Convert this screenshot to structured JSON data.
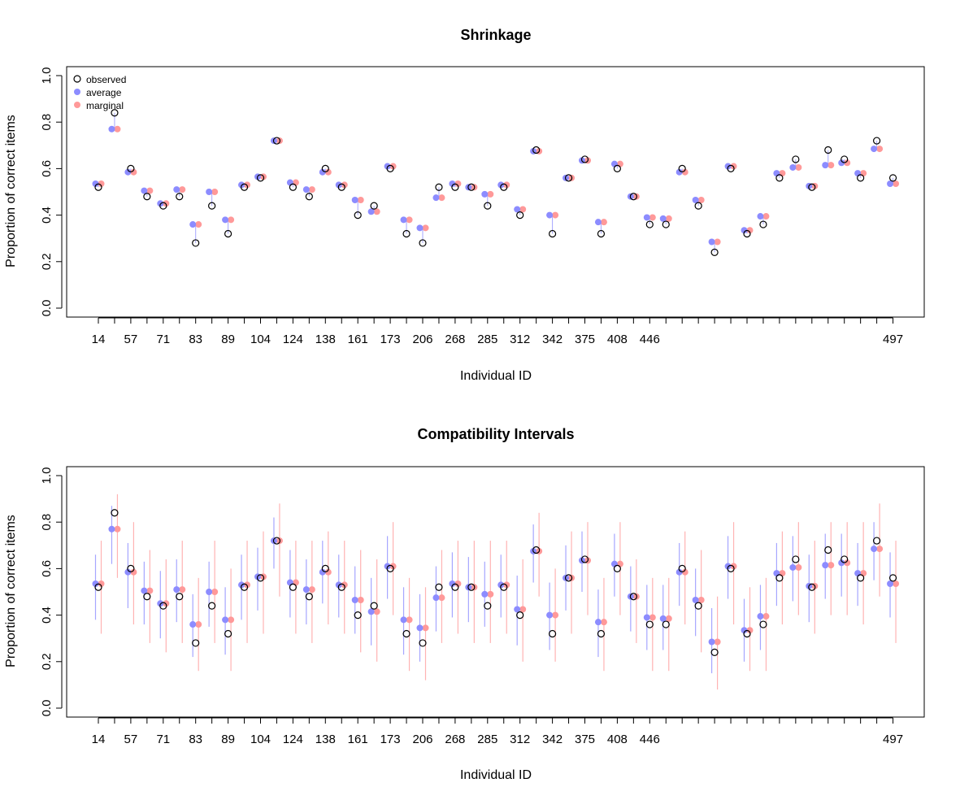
{
  "colors": {
    "observed": "#000000",
    "average": "#8c8cff",
    "marginal": "#ff9999",
    "average_line": "#a6a6ff",
    "marginal_line": "#ffb3b3"
  },
  "chart_data": [
    {
      "type": "scatter",
      "title": "Shrinkage",
      "xlabel": "Individual ID",
      "ylabel": "Proportion of correct items",
      "ylim": [
        0,
        1
      ],
      "yticks": [
        "0.0",
        "0.2",
        "0.4",
        "0.6",
        "0.8",
        "1.0"
      ],
      "xtick_labels": [
        "14",
        "57",
        "71",
        "83",
        "89",
        "104",
        "124",
        "138",
        "161",
        "173",
        "206",
        "268",
        "285",
        "312",
        "342",
        "375",
        "408",
        "446",
        "497"
      ],
      "legend": {
        "position": "top-left",
        "entries": [
          "observed",
          "average",
          "marginal"
        ]
      },
      "observed": [
        0.52,
        0.84,
        0.6,
        0.48,
        0.44,
        0.48,
        0.28,
        0.44,
        0.32,
        0.52,
        0.56,
        0.72,
        0.52,
        0.48,
        0.6,
        0.52,
        0.4,
        0.44,
        0.6,
        0.32,
        0.28,
        0.52,
        0.52,
        0.52,
        0.44,
        0.52,
        0.4,
        0.68,
        0.32,
        0.56,
        0.64,
        0.32,
        0.6,
        0.48,
        0.36,
        0.36,
        0.6,
        0.44,
        0.24,
        0.6,
        0.32,
        0.36,
        0.56,
        0.64,
        0.52,
        0.68,
        0.64,
        0.56,
        0.72,
        0.56
      ],
      "average": [
        0.535,
        0.77,
        0.585,
        0.505,
        0.45,
        0.51,
        0.36,
        0.5,
        0.38,
        0.53,
        0.565,
        0.72,
        0.54,
        0.51,
        0.585,
        0.53,
        0.465,
        0.415,
        0.61,
        0.38,
        0.345,
        0.475,
        0.535,
        0.52,
        0.49,
        0.53,
        0.425,
        0.675,
        0.4,
        0.56,
        0.635,
        0.37,
        0.62,
        0.48,
        0.39,
        0.385,
        0.585,
        0.465,
        0.285,
        0.61,
        0.335,
        0.395,
        0.58,
        0.605,
        0.525,
        0.615,
        0.625,
        0.58,
        0.685,
        0.535
      ],
      "marginal": [
        0.535,
        0.77,
        0.585,
        0.505,
        0.45,
        0.51,
        0.36,
        0.5,
        0.38,
        0.53,
        0.565,
        0.72,
        0.54,
        0.51,
        0.585,
        0.53,
        0.465,
        0.415,
        0.61,
        0.38,
        0.345,
        0.475,
        0.535,
        0.52,
        0.49,
        0.53,
        0.425,
        0.675,
        0.4,
        0.56,
        0.635,
        0.37,
        0.62,
        0.48,
        0.39,
        0.385,
        0.585,
        0.465,
        0.285,
        0.61,
        0.335,
        0.395,
        0.58,
        0.605,
        0.525,
        0.615,
        0.625,
        0.58,
        0.685,
        0.535
      ]
    },
    {
      "type": "scatter",
      "title": "Compatibility Intervals",
      "xlabel": "Individual ID",
      "ylabel": "Proportion of correct items",
      "ylim": [
        0,
        1
      ],
      "yticks": [
        "0.0",
        "0.2",
        "0.4",
        "0.6",
        "0.8",
        "1.0"
      ],
      "xtick_labels": [
        "14",
        "57",
        "71",
        "83",
        "89",
        "104",
        "124",
        "138",
        "161",
        "173",
        "206",
        "268",
        "285",
        "312",
        "342",
        "375",
        "408",
        "446",
        "497"
      ],
      "observed": [
        0.52,
        0.84,
        0.6,
        0.48,
        0.44,
        0.48,
        0.28,
        0.44,
        0.32,
        0.52,
        0.56,
        0.72,
        0.52,
        0.48,
        0.6,
        0.52,
        0.4,
        0.44,
        0.6,
        0.32,
        0.28,
        0.52,
        0.52,
        0.52,
        0.44,
        0.52,
        0.4,
        0.68,
        0.32,
        0.56,
        0.64,
        0.32,
        0.6,
        0.48,
        0.36,
        0.36,
        0.6,
        0.44,
        0.24,
        0.6,
        0.32,
        0.36,
        0.56,
        0.64,
        0.52,
        0.68,
        0.64,
        0.56,
        0.72,
        0.56
      ],
      "average": [
        0.535,
        0.77,
        0.585,
        0.505,
        0.45,
        0.51,
        0.36,
        0.5,
        0.38,
        0.53,
        0.565,
        0.72,
        0.54,
        0.51,
        0.585,
        0.53,
        0.465,
        0.415,
        0.61,
        0.38,
        0.345,
        0.475,
        0.535,
        0.52,
        0.49,
        0.53,
        0.425,
        0.675,
        0.4,
        0.56,
        0.635,
        0.37,
        0.62,
        0.48,
        0.39,
        0.385,
        0.585,
        0.465,
        0.285,
        0.61,
        0.335,
        0.395,
        0.58,
        0.605,
        0.525,
        0.615,
        0.625,
        0.58,
        0.685,
        0.535
      ],
      "marginal": [
        0.535,
        0.77,
        0.585,
        0.505,
        0.45,
        0.51,
        0.36,
        0.5,
        0.38,
        0.53,
        0.565,
        0.72,
        0.54,
        0.51,
        0.585,
        0.53,
        0.465,
        0.415,
        0.61,
        0.38,
        0.345,
        0.475,
        0.535,
        0.52,
        0.49,
        0.53,
        0.425,
        0.675,
        0.4,
        0.56,
        0.635,
        0.37,
        0.62,
        0.48,
        0.39,
        0.385,
        0.585,
        0.465,
        0.285,
        0.61,
        0.335,
        0.395,
        0.58,
        0.605,
        0.525,
        0.615,
        0.625,
        0.58,
        0.685,
        0.535
      ],
      "average_interval": [
        [
          0.38,
          0.66
        ],
        [
          0.62,
          0.87
        ],
        [
          0.43,
          0.71
        ],
        [
          0.36,
          0.63
        ],
        [
          0.3,
          0.59
        ],
        [
          0.37,
          0.64
        ],
        [
          0.22,
          0.49
        ],
        [
          0.35,
          0.63
        ],
        [
          0.23,
          0.52
        ],
        [
          0.38,
          0.66
        ],
        [
          0.42,
          0.69
        ],
        [
          0.6,
          0.82
        ],
        [
          0.39,
          0.68
        ],
        [
          0.36,
          0.64
        ],
        [
          0.45,
          0.72
        ],
        [
          0.39,
          0.66
        ],
        [
          0.32,
          0.61
        ],
        [
          0.27,
          0.56
        ],
        [
          0.47,
          0.74
        ],
        [
          0.23,
          0.52
        ],
        [
          0.2,
          0.49
        ],
        [
          0.33,
          0.61
        ],
        [
          0.39,
          0.67
        ],
        [
          0.37,
          0.65
        ],
        [
          0.35,
          0.63
        ],
        [
          0.39,
          0.66
        ],
        [
          0.27,
          0.57
        ],
        [
          0.54,
          0.79
        ],
        [
          0.25,
          0.54
        ],
        [
          0.42,
          0.7
        ],
        [
          0.5,
          0.76
        ],
        [
          0.22,
          0.51
        ],
        [
          0.48,
          0.75
        ],
        [
          0.33,
          0.61
        ],
        [
          0.25,
          0.53
        ],
        [
          0.25,
          0.53
        ],
        [
          0.44,
          0.71
        ],
        [
          0.31,
          0.6
        ],
        [
          0.15,
          0.43
        ],
        [
          0.47,
          0.74
        ],
        [
          0.2,
          0.47
        ],
        [
          0.25,
          0.53
        ],
        [
          0.44,
          0.71
        ],
        [
          0.46,
          0.74
        ],
        [
          0.37,
          0.66
        ],
        [
          0.47,
          0.75
        ],
        [
          0.48,
          0.75
        ],
        [
          0.44,
          0.71
        ],
        [
          0.55,
          0.8
        ],
        [
          0.39,
          0.67
        ]
      ],
      "marginal_interval": [
        [
          0.32,
          0.72
        ],
        [
          0.56,
          0.92
        ],
        [
          0.36,
          0.8
        ],
        [
          0.28,
          0.68
        ],
        [
          0.24,
          0.64
        ],
        [
          0.28,
          0.72
        ],
        [
          0.16,
          0.56
        ],
        [
          0.28,
          0.72
        ],
        [
          0.16,
          0.6
        ],
        [
          0.28,
          0.72
        ],
        [
          0.32,
          0.76
        ],
        [
          0.48,
          0.88
        ],
        [
          0.32,
          0.72
        ],
        [
          0.28,
          0.72
        ],
        [
          0.36,
          0.76
        ],
        [
          0.32,
          0.72
        ],
        [
          0.24,
          0.68
        ],
        [
          0.2,
          0.64
        ],
        [
          0.4,
          0.8
        ],
        [
          0.16,
          0.56
        ],
        [
          0.12,
          0.52
        ],
        [
          0.28,
          0.68
        ],
        [
          0.32,
          0.72
        ],
        [
          0.28,
          0.72
        ],
        [
          0.28,
          0.72
        ],
        [
          0.32,
          0.72
        ],
        [
          0.2,
          0.64
        ],
        [
          0.48,
          0.84
        ],
        [
          0.2,
          0.6
        ],
        [
          0.32,
          0.76
        ],
        [
          0.4,
          0.8
        ],
        [
          0.16,
          0.56
        ],
        [
          0.4,
          0.8
        ],
        [
          0.28,
          0.64
        ],
        [
          0.16,
          0.56
        ],
        [
          0.16,
          0.56
        ],
        [
          0.36,
          0.76
        ],
        [
          0.24,
          0.68
        ],
        [
          0.08,
          0.48
        ],
        [
          0.36,
          0.8
        ],
        [
          0.16,
          0.52
        ],
        [
          0.16,
          0.56
        ],
        [
          0.36,
          0.76
        ],
        [
          0.4,
          0.8
        ],
        [
          0.32,
          0.72
        ],
        [
          0.4,
          0.8
        ],
        [
          0.4,
          0.8
        ],
        [
          0.36,
          0.8
        ],
        [
          0.48,
          0.88
        ],
        [
          0.28,
          0.72
        ]
      ]
    }
  ]
}
